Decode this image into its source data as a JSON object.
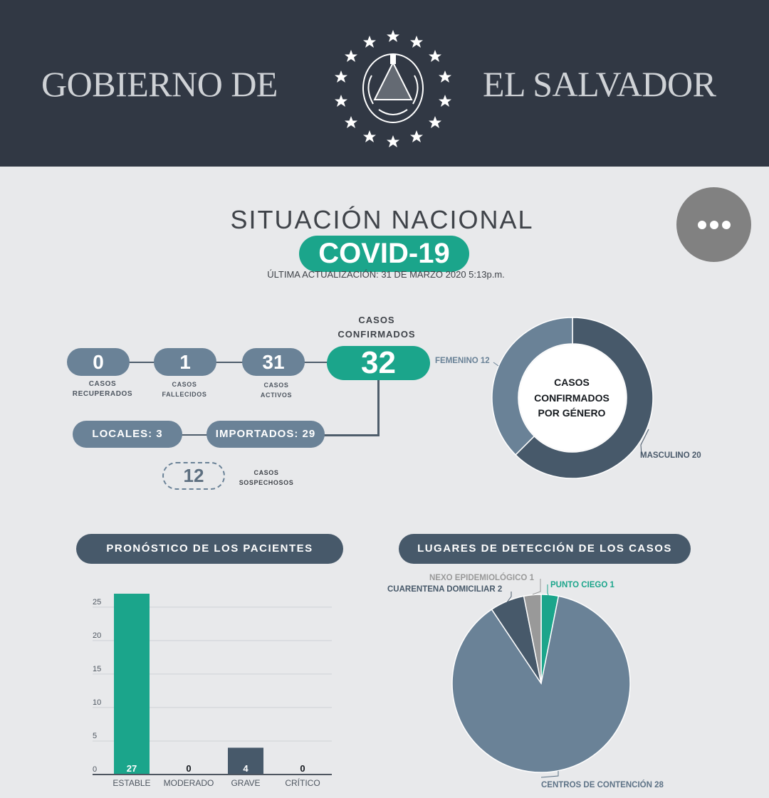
{
  "header": {
    "left_text": "GOBIERNO DE",
    "right_text": "EL SALVADOR",
    "background_color": "#313844"
  },
  "menu_button": {
    "icon": "more-horizontal-icon"
  },
  "title": "SITUACIÓN NACIONAL",
  "covid_label": "COVID-19",
  "update_text": "ÚLTIMA ACTUALIZACIÓN: 31 DE MARZO 2020 5:13p.m.",
  "stats": {
    "recovered": {
      "value": "0",
      "caption_1": "CASOS",
      "caption_2": "RECUPERADOS"
    },
    "deceased": {
      "value": "1",
      "caption_1": "CASOS",
      "caption_2": "FALLECIDOS"
    },
    "active": {
      "value": "31",
      "caption_1": "CASOS",
      "caption_2": "ACTIVOS"
    },
    "confirmed": {
      "value": "32",
      "caption_1": "CASOS",
      "caption_2": "CONFIRMADOS"
    },
    "local": "LOCALES: 3",
    "imported": "IMPORTADOS: 29",
    "suspected": {
      "value": "12",
      "caption_1": "CASOS",
      "caption_2": "SOSPECHOSOS"
    }
  },
  "colors": {
    "accent": "#1ba58b",
    "pill": "#6a8297",
    "dark": "#47596a",
    "pie_gray": "#999999"
  },
  "gender_chart": {
    "label_1": "CASOS",
    "label_2": "CONFIRMADOS",
    "label_3": "POR GÉNERO",
    "female_label": "FEMENINO 12",
    "male_label": "MASCULINO 20"
  },
  "sections": {
    "prognosis": "PRONÓSTICO DE LOS PACIENTES",
    "detection": "LUGARES DE DETECCIÓN DE LOS CASOS"
  },
  "pie_labels": {
    "nexo": "NEXO EPIDEMIOLÓGICO 1",
    "cuarentena": "CUARENTENA DOMICILIAR 2",
    "punto": "PUNTO CIEGO 1",
    "centros": "CENTROS DE CONTENCIÓN 28"
  },
  "chart_data": [
    {
      "type": "bar",
      "categories": [
        "ESTABLE",
        "MODERADO",
        "GRAVE",
        "CRÍTICO"
      ],
      "values": [
        27,
        0,
        4,
        0
      ],
      "value_labels": [
        "27",
        "0",
        "4",
        "0"
      ],
      "bar_colors": [
        "#1ba58b",
        "#1ba58b",
        "#47596a",
        "#47596a"
      ],
      "yticks": [
        "0",
        "5",
        "10",
        "15",
        "20",
        "25"
      ],
      "ylim": [
        0,
        27
      ],
      "grid": true,
      "title": "",
      "xlabel": "",
      "ylabel": ""
    },
    {
      "type": "pie",
      "title": "",
      "slices": [
        {
          "label": "PUNTO CIEGO",
          "value": 1,
          "color": "#1ba58b"
        },
        {
          "label": "CENTROS DE CONTENCIÓN",
          "value": 28,
          "color": "#6a8297"
        },
        {
          "label": "CUARENTENA DOMICILIAR",
          "value": 2,
          "color": "#47596a"
        },
        {
          "label": "NEXO EPIDEMIOLÓGICO",
          "value": 1,
          "color": "#999999"
        }
      ]
    },
    {
      "type": "pie",
      "title": "",
      "donut": true,
      "slices": [
        {
          "label": "MASCULINO",
          "value": 20,
          "color": "#47596a"
        },
        {
          "label": "FEMENINO",
          "value": 12,
          "color": "#6a8297"
        }
      ]
    }
  ]
}
